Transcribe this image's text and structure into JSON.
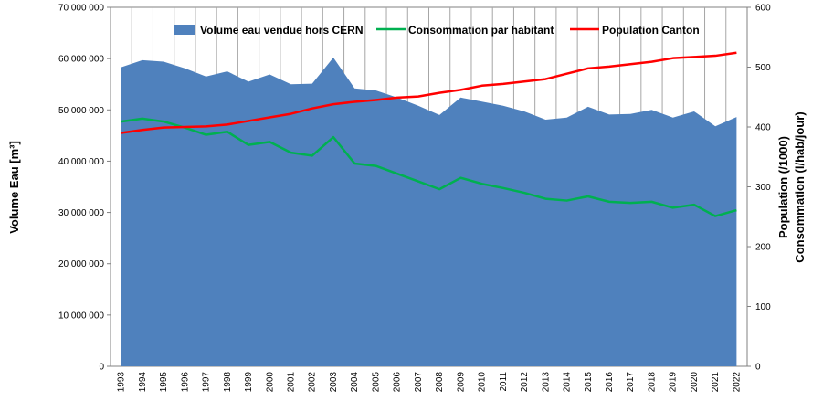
{
  "chart_data": {
    "type": "area",
    "categories": [
      "1993",
      "1994",
      "1995",
      "1996",
      "1997",
      "1998",
      "1999",
      "2000",
      "2001",
      "2002",
      "2003",
      "2004",
      "2005",
      "2006",
      "2007",
      "2008",
      "2009",
      "2010",
      "2011",
      "2012",
      "2013",
      "2014",
      "2015",
      "2016",
      "2017",
      "2018",
      "2019",
      "2020",
      "2021",
      "2022"
    ],
    "series": [
      {
        "name": "Volume eau vendue hors CERN",
        "type": "area",
        "axis": "left",
        "color": "#4f81bd",
        "values": [
          58300000,
          59700000,
          59400000,
          58100000,
          56500000,
          57500000,
          55500000,
          56900000,
          55000000,
          55100000,
          60200000,
          54200000,
          53800000,
          52400000,
          50800000,
          49000000,
          52400000,
          51600000,
          50800000,
          49700000,
          48100000,
          48500000,
          50600000,
          49100000,
          49200000,
          50000000,
          48500000,
          49700000,
          46800000,
          48600000
        ]
      },
      {
        "name": "Consommation par habitant",
        "type": "line",
        "axis": "right",
        "color": "#00b050",
        "values": [
          409,
          414,
          409,
          399,
          387,
          392,
          370,
          375,
          357,
          352,
          383,
          339,
          335,
          322,
          309,
          296,
          315,
          305,
          298,
          290,
          280,
          277,
          284,
          275,
          273,
          275,
          265,
          270,
          251,
          261
        ]
      },
      {
        "name": "Population Canton",
        "type": "line",
        "axis": "right",
        "color": "#ff0000",
        "values": [
          390,
          395,
          399,
          400,
          401,
          404,
          410,
          416,
          422,
          431,
          438,
          442,
          445,
          449,
          451,
          457,
          462,
          469,
          472,
          476,
          480,
          489,
          498,
          501,
          505,
          509,
          515,
          517,
          519,
          524
        ]
      }
    ],
    "y_left": {
      "label": "Volume Eau  [m³]",
      "range": [
        0,
        70000000
      ],
      "ticks": [
        0,
        10000000,
        20000000,
        30000000,
        40000000,
        50000000,
        60000000,
        70000000
      ],
      "tick_labels": [
        "0",
        "10 000 000",
        "20 000 000",
        "30 000 000",
        "40 000 000",
        "50 000 000",
        "60 000 000",
        "70 000 000"
      ]
    },
    "y_right": {
      "label_line1": "Population (/1000)",
      "label_line2": "Consommation (l/hab/jour)",
      "range": [
        0,
        600
      ],
      "ticks": [
        0,
        100,
        200,
        300,
        400,
        500,
        600
      ],
      "tick_labels": [
        "0",
        "100",
        "200",
        "300",
        "400",
        "500",
        "600"
      ]
    },
    "grid": "vertical",
    "legend_position": "top"
  }
}
